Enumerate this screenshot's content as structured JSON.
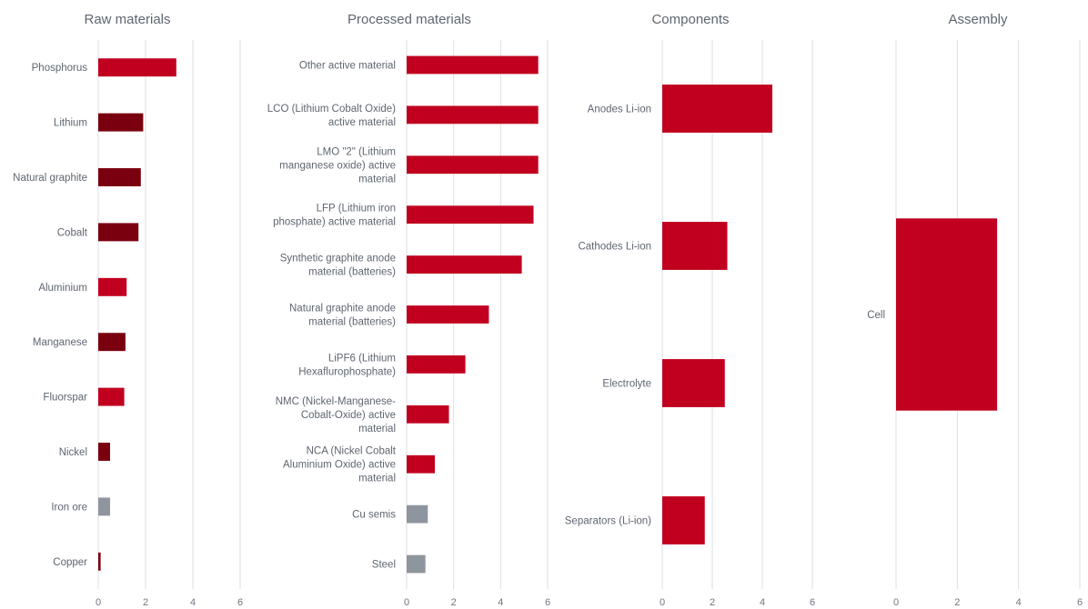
{
  "chart_data": [
    {
      "type": "bar",
      "orientation": "horizontal",
      "title": "Raw materials",
      "categories": [
        "Phosphorus",
        "Lithium",
        "Natural graphite",
        "Cobalt",
        "Aluminium",
        "Manganese",
        "Fluorspar",
        "Nickel",
        "Iron ore",
        "Copper"
      ],
      "values": [
        3.3,
        1.9,
        1.8,
        1.7,
        1.2,
        1.15,
        1.1,
        0.5,
        0.5,
        0.1
      ],
      "colors": [
        "#c1001f",
        "#7a0010",
        "#7a0010",
        "#7a0010",
        "#c1001f",
        "#7a0010",
        "#c1001f",
        "#7a0010",
        "#8e959e",
        "#7a0010"
      ],
      "xlim": [
        0,
        6
      ],
      "ticks": [
        "0",
        "2",
        "4",
        "6"
      ],
      "grid": true
    },
    {
      "type": "bar",
      "orientation": "horizontal",
      "title": "Processed materials",
      "categories": [
        "Other active material",
        "LCO (Lithium Cobalt Oxide)\nactive material",
        "LMO \"2\" (Lithium\nmanganese oxide) active\nmaterial",
        "LFP (Lithium iron\nphosphate) active material",
        "Synthetic graphite anode\nmaterial  (batteries)",
        "Natural graphite anode\nmaterial  (batteries)",
        "LiPF6 (Lithium\nHexaflurophosphate)",
        "NMC (Nickel-Manganese-\nCobalt-Oxide) active\nmaterial",
        "NCA (Nickel Cobalt\nAluminium Oxide) active\nmaterial",
        "Cu semis",
        "Steel"
      ],
      "values": [
        5.6,
        5.6,
        5.6,
        5.4,
        4.9,
        3.5,
        2.5,
        1.8,
        1.2,
        0.9,
        0.8
      ],
      "colors": [
        "#c1001f",
        "#c1001f",
        "#c1001f",
        "#c1001f",
        "#c1001f",
        "#c1001f",
        "#c1001f",
        "#c1001f",
        "#c1001f",
        "#8e959e",
        "#8e959e"
      ],
      "xlim": [
        0,
        6
      ],
      "ticks": [
        "0",
        "2",
        "4",
        "6"
      ],
      "grid": true
    },
    {
      "type": "bar",
      "orientation": "horizontal",
      "title": "Components",
      "categories": [
        "Anodes Li-ion",
        "Cathodes Li-ion",
        "Electrolyte",
        "Separators (Li-ion)"
      ],
      "values": [
        4.4,
        2.6,
        2.5,
        1.7
      ],
      "colors": [
        "#c1001f",
        "#c1001f",
        "#c1001f",
        "#c1001f"
      ],
      "xlim": [
        0,
        6
      ],
      "ticks": [
        "0",
        "2",
        "4",
        "6"
      ],
      "grid": true
    },
    {
      "type": "bar",
      "orientation": "horizontal",
      "title": "Assembly",
      "categories": [
        "Cell"
      ],
      "values": [
        3.3
      ],
      "colors": [
        "#c1001f"
      ],
      "xlim": [
        0,
        6
      ],
      "ticks": [
        "0",
        "2",
        "4",
        "6"
      ],
      "grid": true
    }
  ]
}
